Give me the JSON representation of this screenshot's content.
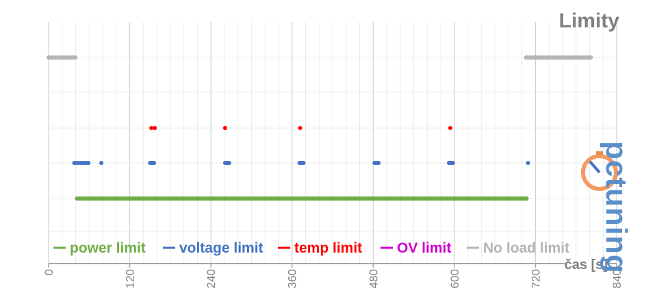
{
  "chart_data": {
    "type": "scatter",
    "title": "Limity",
    "xlabel": "čas [s]",
    "ylabel": "",
    "xlim": [
      0,
      840
    ],
    "ylim": [
      0,
      6
    ],
    "xticks": [
      "0",
      "120",
      "240",
      "360",
      "480",
      "600",
      "720",
      "840"
    ],
    "grid": true,
    "legend_position": "bottom",
    "series": [
      {
        "name": "power limit",
        "color": "#70ad47",
        "level": 2,
        "segments": [
          [
            42,
            151
          ],
          [
            153,
            262
          ],
          [
            264,
            373
          ],
          [
            375,
            484
          ],
          [
            486,
            595
          ],
          [
            597,
            707
          ]
        ]
      },
      {
        "name": "voltage limit",
        "color": "#4472c4",
        "level": 3,
        "points": [
          38,
          41,
          44,
          47,
          50,
          53,
          56,
          59,
          78,
          150,
          152,
          154,
          156,
          261,
          263,
          265,
          267,
          371,
          373,
          375,
          377,
          482,
          484,
          486,
          488,
          592,
          594,
          596,
          598,
          709
        ]
      },
      {
        "name": "temp limit",
        "color": "#ff0000",
        "level": 4,
        "points": [
          152,
          157,
          261,
          372,
          594
        ]
      },
      {
        "name": "OV limit",
        "color": "#cc00cc",
        "level": 5,
        "points": []
      },
      {
        "name": "No load limit",
        "color": "#b4b4b4",
        "level": 6,
        "segments": [
          [
            0,
            40
          ],
          [
            706,
            802
          ]
        ]
      }
    ]
  },
  "watermark": {
    "text": "pctuning",
    "icon": "stopwatch-logo-icon",
    "colors": {
      "text": "#5b8fc9",
      "logo": "#f08a4b"
    }
  }
}
